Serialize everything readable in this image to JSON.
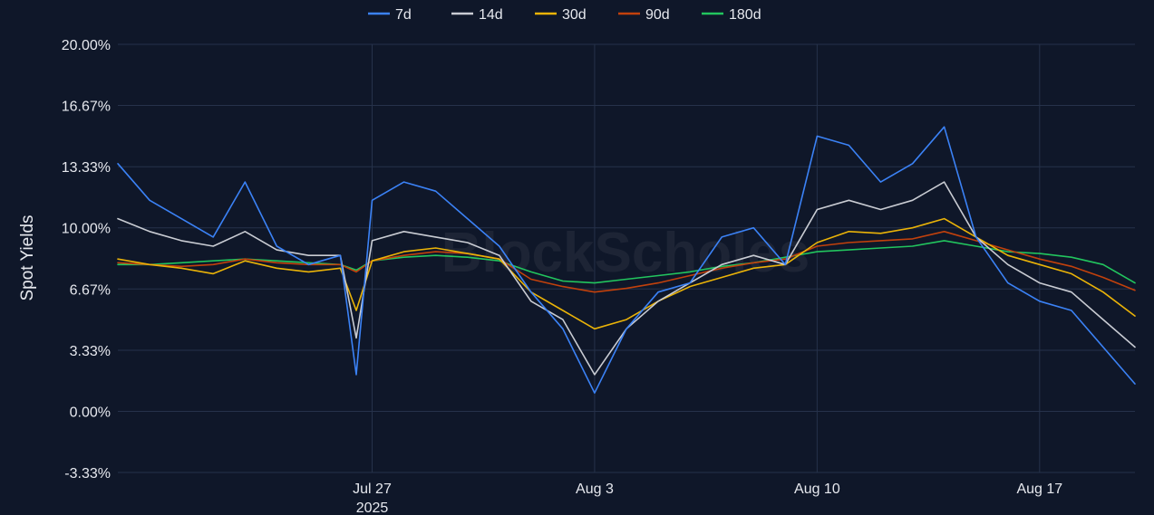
{
  "chart_data": {
    "type": "line",
    "title": "",
    "xlabel": "",
    "ylabel": "Spot Yields",
    "watermark": "BlockScholes",
    "xlim": [
      "2025-07-19",
      "2025-08-20"
    ],
    "ylim": [
      -3.33,
      20.0
    ],
    "y_ticks": [
      "20.00%",
      "16.67%",
      "13.33%",
      "10.00%",
      "6.67%",
      "3.33%",
      "0.00%",
      "-3.33%"
    ],
    "y_tick_values": [
      20.0,
      16.67,
      13.33,
      10.0,
      6.67,
      3.33,
      0.0,
      -3.33
    ],
    "x_ticks": [
      {
        "date": "2025-07-27",
        "label": "Jul 27",
        "sublabel": "2025"
      },
      {
        "date": "2025-08-03",
        "label": "Aug 3",
        "sublabel": ""
      },
      {
        "date": "2025-08-10",
        "label": "Aug 10",
        "sublabel": ""
      },
      {
        "date": "2025-08-17",
        "label": "Aug 17",
        "sublabel": ""
      }
    ],
    "grid": true,
    "legend_position": "top-center",
    "series": [
      {
        "name": "7d",
        "color": "#3b82f6",
        "points": [
          [
            "2025-07-19",
            13.5
          ],
          [
            "2025-07-20",
            11.5
          ],
          [
            "2025-07-21",
            10.5
          ],
          [
            "2025-07-22",
            9.5
          ],
          [
            "2025-07-23",
            12.5
          ],
          [
            "2025-07-24",
            9.0
          ],
          [
            "2025-07-25",
            8.0
          ],
          [
            "2025-07-26",
            8.5
          ],
          [
            "2025-07-26T12",
            2.0
          ],
          [
            "2025-07-27",
            11.5
          ],
          [
            "2025-07-28",
            12.5
          ],
          [
            "2025-07-29",
            12.0
          ],
          [
            "2025-07-30",
            10.5
          ],
          [
            "2025-07-31",
            9.0
          ],
          [
            "2025-08-01",
            6.5
          ],
          [
            "2025-08-02",
            4.5
          ],
          [
            "2025-08-03",
            1.0
          ],
          [
            "2025-08-04",
            4.5
          ],
          [
            "2025-08-05",
            6.5
          ],
          [
            "2025-08-06",
            7.0
          ],
          [
            "2025-08-07",
            9.5
          ],
          [
            "2025-08-08",
            10.0
          ],
          [
            "2025-08-09",
            8.0
          ],
          [
            "2025-08-10",
            15.0
          ],
          [
            "2025-08-11",
            14.5
          ],
          [
            "2025-08-12",
            12.5
          ],
          [
            "2025-08-13",
            13.5
          ],
          [
            "2025-08-14",
            15.5
          ],
          [
            "2025-08-15",
            9.5
          ],
          [
            "2025-08-16",
            7.0
          ],
          [
            "2025-08-17",
            6.0
          ],
          [
            "2025-08-18",
            5.5
          ],
          [
            "2025-08-19",
            3.5
          ],
          [
            "2025-08-20",
            1.5
          ]
        ]
      },
      {
        "name": "14d",
        "color": "#c9ccd3",
        "points": [
          [
            "2025-07-19",
            10.5
          ],
          [
            "2025-07-20",
            9.8
          ],
          [
            "2025-07-21",
            9.3
          ],
          [
            "2025-07-22",
            9.0
          ],
          [
            "2025-07-23",
            9.8
          ],
          [
            "2025-07-24",
            8.8
          ],
          [
            "2025-07-25",
            8.5
          ],
          [
            "2025-07-26",
            8.5
          ],
          [
            "2025-07-26T12",
            4.0
          ],
          [
            "2025-07-27",
            9.3
          ],
          [
            "2025-07-28",
            9.8
          ],
          [
            "2025-07-29",
            9.5
          ],
          [
            "2025-07-30",
            9.2
          ],
          [
            "2025-07-31",
            8.5
          ],
          [
            "2025-08-01",
            6.0
          ],
          [
            "2025-08-02",
            5.0
          ],
          [
            "2025-08-03",
            2.0
          ],
          [
            "2025-08-04",
            4.5
          ],
          [
            "2025-08-05",
            6.0
          ],
          [
            "2025-08-06",
            7.0
          ],
          [
            "2025-08-07",
            8.0
          ],
          [
            "2025-08-08",
            8.5
          ],
          [
            "2025-08-09",
            8.0
          ],
          [
            "2025-08-10",
            11.0
          ],
          [
            "2025-08-11",
            11.5
          ],
          [
            "2025-08-12",
            11.0
          ],
          [
            "2025-08-13",
            11.5
          ],
          [
            "2025-08-14",
            12.5
          ],
          [
            "2025-08-15",
            9.5
          ],
          [
            "2025-08-16",
            8.0
          ],
          [
            "2025-08-17",
            7.0
          ],
          [
            "2025-08-18",
            6.5
          ],
          [
            "2025-08-19",
            5.0
          ],
          [
            "2025-08-20",
            3.5
          ]
        ]
      },
      {
        "name": "30d",
        "color": "#eab308",
        "points": [
          [
            "2025-07-19",
            8.3
          ],
          [
            "2025-07-20",
            8.0
          ],
          [
            "2025-07-21",
            7.8
          ],
          [
            "2025-07-22",
            7.5
          ],
          [
            "2025-07-23",
            8.2
          ],
          [
            "2025-07-24",
            7.8
          ],
          [
            "2025-07-25",
            7.6
          ],
          [
            "2025-07-26",
            7.8
          ],
          [
            "2025-07-26T12",
            5.5
          ],
          [
            "2025-07-27",
            8.2
          ],
          [
            "2025-07-28",
            8.7
          ],
          [
            "2025-07-29",
            8.9
          ],
          [
            "2025-07-30",
            8.6
          ],
          [
            "2025-07-31",
            8.3
          ],
          [
            "2025-08-01",
            6.5
          ],
          [
            "2025-08-02",
            5.5
          ],
          [
            "2025-08-03",
            4.5
          ],
          [
            "2025-08-04",
            5.0
          ],
          [
            "2025-08-05",
            6.0
          ],
          [
            "2025-08-06",
            6.8
          ],
          [
            "2025-08-07",
            7.3
          ],
          [
            "2025-08-08",
            7.8
          ],
          [
            "2025-08-09",
            8.0
          ],
          [
            "2025-08-10",
            9.2
          ],
          [
            "2025-08-11",
            9.8
          ],
          [
            "2025-08-12",
            9.7
          ],
          [
            "2025-08-13",
            10.0
          ],
          [
            "2025-08-14",
            10.5
          ],
          [
            "2025-08-15",
            9.5
          ],
          [
            "2025-08-16",
            8.5
          ],
          [
            "2025-08-17",
            8.0
          ],
          [
            "2025-08-18",
            7.5
          ],
          [
            "2025-08-19",
            6.5
          ],
          [
            "2025-08-20",
            5.2
          ]
        ]
      },
      {
        "name": "90d",
        "color": "#c2410c",
        "points": [
          [
            "2025-07-19",
            8.1
          ],
          [
            "2025-07-20",
            8.0
          ],
          [
            "2025-07-21",
            7.9
          ],
          [
            "2025-07-22",
            8.0
          ],
          [
            "2025-07-23",
            8.3
          ],
          [
            "2025-07-24",
            8.1
          ],
          [
            "2025-07-25",
            8.0
          ],
          [
            "2025-07-26",
            8.0
          ],
          [
            "2025-07-26T12",
            7.6
          ],
          [
            "2025-07-27",
            8.2
          ],
          [
            "2025-07-28",
            8.5
          ],
          [
            "2025-07-29",
            8.7
          ],
          [
            "2025-07-30",
            8.6
          ],
          [
            "2025-07-31",
            8.3
          ],
          [
            "2025-08-01",
            7.2
          ],
          [
            "2025-08-02",
            6.8
          ],
          [
            "2025-08-03",
            6.5
          ],
          [
            "2025-08-04",
            6.7
          ],
          [
            "2025-08-05",
            7.0
          ],
          [
            "2025-08-06",
            7.4
          ],
          [
            "2025-08-07",
            7.8
          ],
          [
            "2025-08-08",
            8.1
          ],
          [
            "2025-08-09",
            8.3
          ],
          [
            "2025-08-10",
            9.0
          ],
          [
            "2025-08-11",
            9.2
          ],
          [
            "2025-08-12",
            9.3
          ],
          [
            "2025-08-13",
            9.4
          ],
          [
            "2025-08-14",
            9.8
          ],
          [
            "2025-08-15",
            9.3
          ],
          [
            "2025-08-16",
            8.8
          ],
          [
            "2025-08-17",
            8.3
          ],
          [
            "2025-08-18",
            7.9
          ],
          [
            "2025-08-19",
            7.3
          ],
          [
            "2025-08-20",
            6.6
          ]
        ]
      },
      {
        "name": "180d",
        "color": "#22c55e",
        "points": [
          [
            "2025-07-19",
            8.0
          ],
          [
            "2025-07-20",
            8.0
          ],
          [
            "2025-07-21",
            8.1
          ],
          [
            "2025-07-22",
            8.2
          ],
          [
            "2025-07-23",
            8.3
          ],
          [
            "2025-07-24",
            8.2
          ],
          [
            "2025-07-25",
            8.1
          ],
          [
            "2025-07-26",
            8.0
          ],
          [
            "2025-07-26T12",
            7.7
          ],
          [
            "2025-07-27",
            8.2
          ],
          [
            "2025-07-28",
            8.4
          ],
          [
            "2025-07-29",
            8.5
          ],
          [
            "2025-07-30",
            8.4
          ],
          [
            "2025-07-31",
            8.2
          ],
          [
            "2025-08-01",
            7.6
          ],
          [
            "2025-08-02",
            7.1
          ],
          [
            "2025-08-03",
            7.0
          ],
          [
            "2025-08-04",
            7.2
          ],
          [
            "2025-08-05",
            7.4
          ],
          [
            "2025-08-06",
            7.6
          ],
          [
            "2025-08-07",
            7.9
          ],
          [
            "2025-08-08",
            8.1
          ],
          [
            "2025-08-09",
            8.4
          ],
          [
            "2025-08-10",
            8.7
          ],
          [
            "2025-08-11",
            8.8
          ],
          [
            "2025-08-12",
            8.9
          ],
          [
            "2025-08-13",
            9.0
          ],
          [
            "2025-08-14",
            9.3
          ],
          [
            "2025-08-15",
            9.0
          ],
          [
            "2025-08-16",
            8.7
          ],
          [
            "2025-08-17",
            8.6
          ],
          [
            "2025-08-18",
            8.4
          ],
          [
            "2025-08-19",
            8.0
          ],
          [
            "2025-08-20",
            7.0
          ]
        ]
      }
    ]
  }
}
